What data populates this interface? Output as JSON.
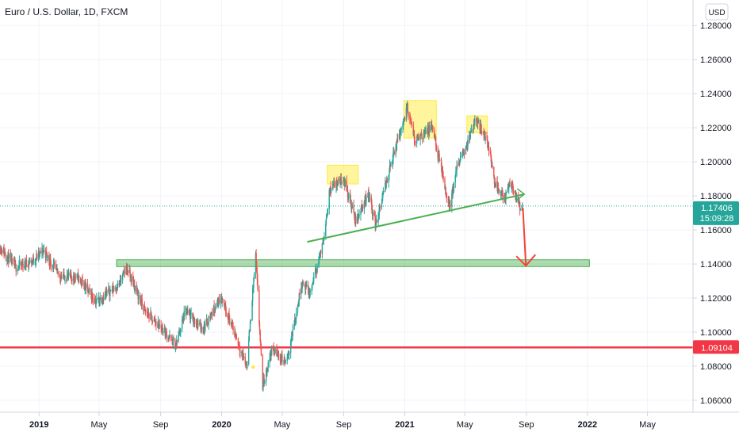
{
  "chart_data": {
    "type": "candlestick",
    "title": "Euro / U.S. Dollar, 1D, FXCM",
    "currency": "USD",
    "y_axis": {
      "range": [
        1.053,
        1.295
      ],
      "ticks": [
        "1.28000",
        "1.26000",
        "1.24000",
        "1.22000",
        "1.20000",
        "1.18000",
        "1.16000",
        "1.14000",
        "1.12000",
        "1.10000",
        "1.08000",
        "1.06000"
      ]
    },
    "x_axis": {
      "start": "2018-10-15",
      "end": "2022-07-31",
      "ticks": [
        {
          "label": "2019",
          "date": "2019-01-01",
          "bold": true
        },
        {
          "label": "May",
          "date": "2019-05-01",
          "bold": false
        },
        {
          "label": "Sep",
          "date": "2019-09-01",
          "bold": false
        },
        {
          "label": "2020",
          "date": "2020-01-01",
          "bold": true
        },
        {
          "label": "May",
          "date": "2020-05-01",
          "bold": false
        },
        {
          "label": "Sep",
          "date": "2020-09-01",
          "bold": false
        },
        {
          "label": "2021",
          "date": "2021-01-01",
          "bold": true
        },
        {
          "label": "May",
          "date": "2021-05-01",
          "bold": false
        },
        {
          "label": "Sep",
          "date": "2021-09-01",
          "bold": false
        },
        {
          "label": "2022",
          "date": "2022-01-01",
          "bold": true
        },
        {
          "label": "May",
          "date": "2022-05-01",
          "bold": false
        }
      ]
    },
    "price_path": [
      [
        "2018-10-15",
        1.15
      ],
      [
        "2018-11-15",
        1.138
      ],
      [
        "2018-12-20",
        1.142
      ],
      [
        "2019-01-10",
        1.148
      ],
      [
        "2019-02-10",
        1.133
      ],
      [
        "2019-03-20",
        1.132
      ],
      [
        "2019-04-25",
        1.118
      ],
      [
        "2019-06-10",
        1.128
      ],
      [
        "2019-06-25",
        1.138
      ],
      [
        "2019-08-01",
        1.112
      ],
      [
        "2019-09-05",
        1.102
      ],
      [
        "2019-10-01",
        1.092
      ],
      [
        "2019-10-20",
        1.112
      ],
      [
        "2019-11-25",
        1.102
      ],
      [
        "2019-12-31",
        1.121
      ],
      [
        "2020-02-20",
        1.08
      ],
      [
        "2020-03-09",
        1.145
      ],
      [
        "2020-03-23",
        1.068
      ],
      [
        "2020-04-10",
        1.09
      ],
      [
        "2020-05-10",
        1.082
      ],
      [
        "2020-06-10",
        1.13
      ],
      [
        "2020-06-25",
        1.122
      ],
      [
        "2020-07-20",
        1.15
      ],
      [
        "2020-08-05",
        1.185
      ],
      [
        "2020-09-01",
        1.19
      ],
      [
        "2020-09-25",
        1.165
      ],
      [
        "2020-10-20",
        1.182
      ],
      [
        "2020-11-04",
        1.163
      ],
      [
        "2020-12-01",
        1.195
      ],
      [
        "2021-01-06",
        1.232
      ],
      [
        "2021-01-20",
        1.213
      ],
      [
        "2021-02-25",
        1.22
      ],
      [
        "2021-03-31",
        1.173
      ],
      [
        "2021-04-15",
        1.196
      ],
      [
        "2021-05-25",
        1.225
      ],
      [
        "2021-06-15",
        1.212
      ],
      [
        "2021-06-30",
        1.188
      ],
      [
        "2021-07-20",
        1.178
      ],
      [
        "2021-07-30",
        1.189
      ],
      [
        "2021-08-20",
        1.172
      ],
      [
        "2021-08-24",
        1.174
      ]
    ],
    "last_price": "1.17406",
    "countdown": "15:09:28",
    "horizontal_level": "1.09104",
    "annotations": {
      "support_zone": {
        "x_from": "2019-06-05",
        "x_to": "2022-01-05",
        "y_from": 1.1385,
        "y_to": 1.1425,
        "color": "#4caf50"
      },
      "neckline": {
        "from": [
          "2020-06-20",
          1.153
        ],
        "to": [
          "2021-08-28",
          1.181
        ],
        "color": "#4caf50"
      },
      "hs_boxes": [
        {
          "x_from": "2020-07-30",
          "x_to": "2020-09-30",
          "y_from": 1.187,
          "y_to": 1.198
        },
        {
          "x_from": "2020-12-30",
          "x_to": "2021-03-05",
          "y_from": 1.214,
          "y_to": 1.236
        },
        {
          "x_from": "2021-05-05",
          "x_to": "2021-06-15",
          "y_from": 1.217,
          "y_to": 1.227
        }
      ],
      "projection_arrow": {
        "from": [
          "2021-08-25",
          1.173
        ],
        "to": [
          "2021-08-31",
          1.139
        ],
        "color": "#f44336"
      },
      "level_line_color": "#f23645",
      "box_color": "#ffeb3b"
    },
    "colors": {
      "up": "#26a69a",
      "down": "#ef5350",
      "grid": "#f0f3fa",
      "last_price_tag": "#26a69a",
      "level_tag": "#f23645"
    }
  }
}
